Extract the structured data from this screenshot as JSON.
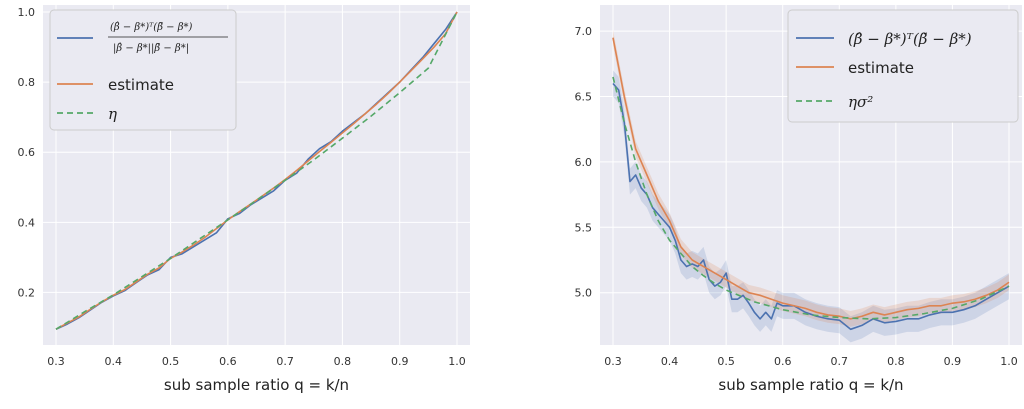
{
  "chart_data": [
    {
      "type": "line",
      "xlabel": "sub sample ratio  q = k/n",
      "xlim": [
        0.3,
        1.0
      ],
      "ylim": [
        0.05,
        1.02
      ],
      "xticks": [
        "0.3",
        "0.4",
        "0.5",
        "0.6",
        "0.7",
        "0.8",
        "0.9",
        "1.0"
      ],
      "yticks": [
        "0.2",
        "0.4",
        "0.6",
        "0.8",
        "1.0"
      ],
      "grid": true,
      "legend_position": "top-left",
      "legend": {
        "cosine_num": "(β̂ − β*)ᵀ(β̃ − β*)",
        "cosine_den": "|β̂ − β*||β̃ − β*|",
        "estimate": "estimate",
        "eta": "η"
      },
      "colors": {
        "blue": "#4c72b0",
        "orange": "#dd8452",
        "green": "#55a868",
        "background": "#eaeaf2"
      },
      "series": [
        {
          "name": "cosine",
          "x": [
            0.3,
            0.32,
            0.34,
            0.36,
            0.38,
            0.4,
            0.42,
            0.44,
            0.46,
            0.48,
            0.5,
            0.52,
            0.54,
            0.56,
            0.58,
            0.6,
            0.62,
            0.64,
            0.66,
            0.68,
            0.7,
            0.72,
            0.74,
            0.76,
            0.78,
            0.8,
            0.82,
            0.84,
            0.86,
            0.88,
            0.9,
            0.92,
            0.94,
            0.96,
            0.98,
            1.0
          ],
          "y": [
            0.095,
            0.11,
            0.128,
            0.15,
            0.172,
            0.19,
            0.205,
            0.228,
            0.25,
            0.265,
            0.3,
            0.31,
            0.33,
            0.35,
            0.37,
            0.41,
            0.425,
            0.45,
            0.47,
            0.49,
            0.52,
            0.54,
            0.58,
            0.61,
            0.63,
            0.66,
            0.685,
            0.71,
            0.74,
            0.77,
            0.8,
            0.835,
            0.87,
            0.91,
            0.95,
            1.0
          ]
        },
        {
          "name": "estimate",
          "x": [
            0.3,
            0.32,
            0.34,
            0.36,
            0.38,
            0.4,
            0.42,
            0.44,
            0.46,
            0.48,
            0.5,
            0.52,
            0.54,
            0.56,
            0.58,
            0.6,
            0.62,
            0.64,
            0.66,
            0.68,
            0.7,
            0.72,
            0.74,
            0.76,
            0.78,
            0.8,
            0.82,
            0.84,
            0.86,
            0.88,
            0.9,
            0.92,
            0.94,
            0.96,
            0.98,
            1.0
          ],
          "y": [
            0.095,
            0.113,
            0.13,
            0.152,
            0.173,
            0.192,
            0.208,
            0.23,
            0.252,
            0.27,
            0.297,
            0.315,
            0.335,
            0.357,
            0.382,
            0.407,
            0.43,
            0.452,
            0.475,
            0.498,
            0.522,
            0.548,
            0.575,
            0.602,
            0.628,
            0.655,
            0.682,
            0.71,
            0.738,
            0.768,
            0.8,
            0.833,
            0.866,
            0.9,
            0.938,
            1.0
          ]
        },
        {
          "name": "η",
          "x": [
            0.3,
            0.35,
            0.4,
            0.45,
            0.5,
            0.55,
            0.6,
            0.65,
            0.7,
            0.75,
            0.8,
            0.85,
            0.9,
            0.95,
            1.0
          ],
          "y": [
            0.095,
            0.145,
            0.193,
            0.245,
            0.297,
            0.352,
            0.407,
            0.463,
            0.52,
            0.578,
            0.64,
            0.703,
            0.77,
            0.84,
            1.0
          ]
        }
      ]
    },
    {
      "type": "line",
      "xlabel": "sub sample ratio  q = k/n",
      "xlim": [
        0.3,
        1.0
      ],
      "ylim": [
        4.6,
        7.2
      ],
      "xticks": [
        "0.3",
        "0.4",
        "0.5",
        "0.6",
        "0.7",
        "0.8",
        "0.9",
        "1.0"
      ],
      "yticks": [
        "5.0",
        "5.5",
        "6.0",
        "6.5",
        "7.0"
      ],
      "grid": true,
      "legend_position": "top-right",
      "legend": {
        "inner": "(β̂ − β*)ᵀ(β̃ − β*)",
        "estimate": "estimate",
        "eta_sigma": "ησ²"
      },
      "colors": {
        "blue": "#4c72b0",
        "orange": "#dd8452",
        "green": "#55a868",
        "background": "#eaeaf2"
      },
      "series": [
        {
          "name": "inner",
          "x": [
            0.3,
            0.31,
            0.32,
            0.33,
            0.34,
            0.35,
            0.36,
            0.37,
            0.38,
            0.39,
            0.4,
            0.41,
            0.42,
            0.43,
            0.44,
            0.45,
            0.46,
            0.47,
            0.48,
            0.49,
            0.5,
            0.51,
            0.52,
            0.53,
            0.54,
            0.55,
            0.56,
            0.57,
            0.58,
            0.59,
            0.6,
            0.62,
            0.64,
            0.66,
            0.68,
            0.7,
            0.72,
            0.74,
            0.76,
            0.78,
            0.8,
            0.82,
            0.84,
            0.86,
            0.88,
            0.9,
            0.92,
            0.94,
            0.96,
            0.98,
            1.0
          ],
          "y": [
            6.6,
            6.55,
            6.3,
            5.85,
            5.9,
            5.8,
            5.75,
            5.65,
            5.6,
            5.55,
            5.5,
            5.4,
            5.25,
            5.2,
            5.22,
            5.2,
            5.25,
            5.1,
            5.05,
            5.08,
            5.15,
            4.95,
            4.95,
            4.98,
            4.92,
            4.85,
            4.8,
            4.85,
            4.8,
            4.92,
            4.9,
            4.9,
            4.85,
            4.82,
            4.8,
            4.79,
            4.72,
            4.75,
            4.8,
            4.77,
            4.78,
            4.8,
            4.8,
            4.83,
            4.85,
            4.85,
            4.87,
            4.9,
            4.95,
            5.0,
            5.05
          ]
        },
        {
          "name": "estimate",
          "x": [
            0.3,
            0.32,
            0.34,
            0.36,
            0.38,
            0.4,
            0.42,
            0.44,
            0.46,
            0.48,
            0.5,
            0.52,
            0.54,
            0.56,
            0.58,
            0.6,
            0.62,
            0.64,
            0.66,
            0.68,
            0.7,
            0.72,
            0.74,
            0.76,
            0.78,
            0.8,
            0.82,
            0.84,
            0.86,
            0.88,
            0.9,
            0.92,
            0.94,
            0.96,
            0.98,
            1.0
          ],
          "y": [
            6.95,
            6.5,
            6.1,
            5.9,
            5.7,
            5.55,
            5.35,
            5.25,
            5.2,
            5.15,
            5.1,
            5.05,
            5.0,
            4.98,
            4.95,
            4.92,
            4.9,
            4.88,
            4.85,
            4.83,
            4.82,
            4.8,
            4.82,
            4.85,
            4.83,
            4.85,
            4.87,
            4.88,
            4.9,
            4.9,
            4.92,
            4.93,
            4.95,
            4.98,
            5.02,
            5.08
          ]
        },
        {
          "name": "ησ²",
          "x": [
            0.3,
            0.32,
            0.34,
            0.36,
            0.38,
            0.4,
            0.42,
            0.44,
            0.46,
            0.48,
            0.5,
            0.55,
            0.6,
            0.65,
            0.7,
            0.75,
            0.8,
            0.85,
            0.9,
            0.95,
            1.0
          ],
          "y": [
            6.65,
            6.3,
            6.0,
            5.75,
            5.55,
            5.4,
            5.3,
            5.2,
            5.13,
            5.07,
            5.02,
            4.93,
            4.87,
            4.83,
            4.81,
            4.8,
            4.81,
            4.84,
            4.88,
            4.95,
            5.05
          ]
        }
      ]
    }
  ]
}
